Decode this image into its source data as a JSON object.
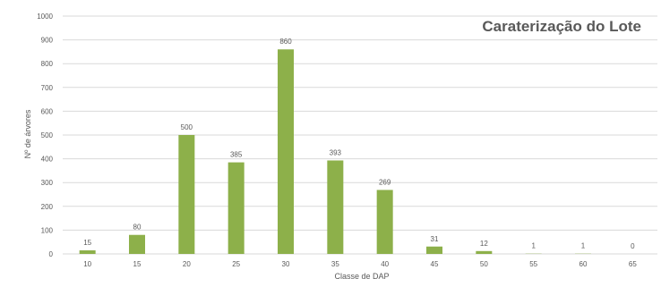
{
  "chart_data": {
    "type": "bar",
    "title": "Caraterização do Lote",
    "xlabel": "Classe de DAP",
    "ylabel": "Nº de árvores",
    "categories": [
      "10",
      "15",
      "20",
      "25",
      "30",
      "35",
      "40",
      "45",
      "50",
      "55",
      "60",
      "65"
    ],
    "values": [
      15,
      80,
      500,
      385,
      860,
      393,
      269,
      31,
      12,
      1,
      1,
      0
    ],
    "data_labels": [
      "15",
      "80",
      "500",
      "385",
      "860",
      "393",
      "269",
      "31",
      "12",
      "1",
      "1",
      "0"
    ],
    "ylim": [
      0,
      1000
    ],
    "yticks": [
      "0",
      "100",
      "200",
      "300",
      "400",
      "500",
      "600",
      "700",
      "800",
      "900",
      "1000"
    ],
    "grid": true,
    "legend": "none",
    "colors": {
      "bar": "#8db04a",
      "grid": "#d9d9d9",
      "text": "#595959",
      "title": "#595959"
    }
  }
}
